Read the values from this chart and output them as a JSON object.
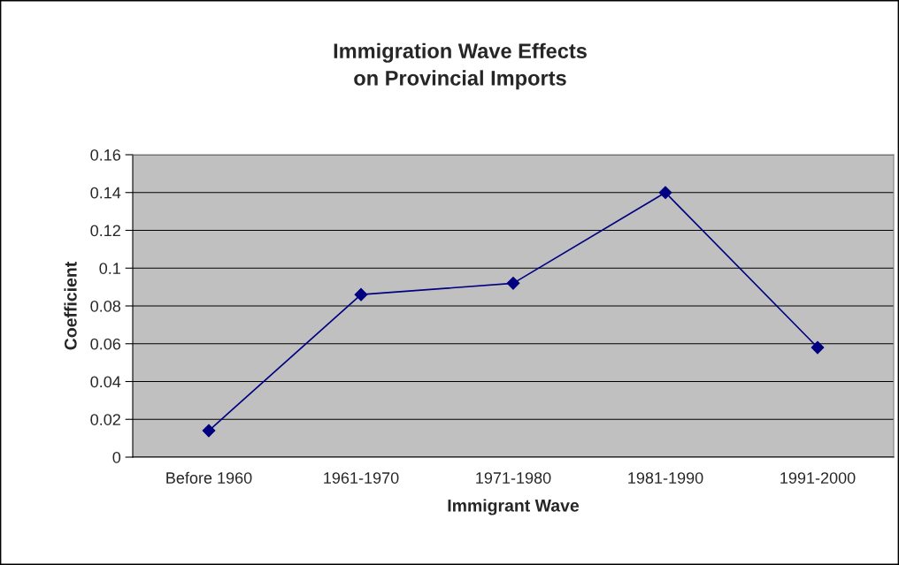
{
  "chart_data": {
    "type": "line",
    "title": "Immigration Wave Effects\non Provincial Imports",
    "xlabel": "Immigrant Wave",
    "ylabel": "Coefficient",
    "categories": [
      "Before 1960",
      "1961-1970",
      "1971-1980",
      "1981-1990",
      "1991-2000"
    ],
    "series": [
      {
        "color": "#000080",
        "values": [
          0.014,
          0.086,
          0.092,
          0.14,
          0.058
        ]
      }
    ],
    "ylim": [
      0,
      0.16
    ],
    "yticks": [
      0,
      {
        "value": 0.02,
        "label": "0.02"
      },
      {
        "value": 0.04,
        "label": "0.04"
      },
      {
        "value": 0.06,
        "label": "0.06"
      },
      {
        "value": 0.08,
        "label": "0.08"
      },
      {
        "value": 0.1,
        "label": "0.1"
      },
      {
        "value": 0.12,
        "label": "0.12"
      },
      {
        "value": 0.14,
        "label": "0.14"
      },
      {
        "value": 0.16,
        "label": "0.16"
      }
    ],
    "grid": "y",
    "marker": "diamond",
    "line_style": "solid",
    "legend": false
  }
}
